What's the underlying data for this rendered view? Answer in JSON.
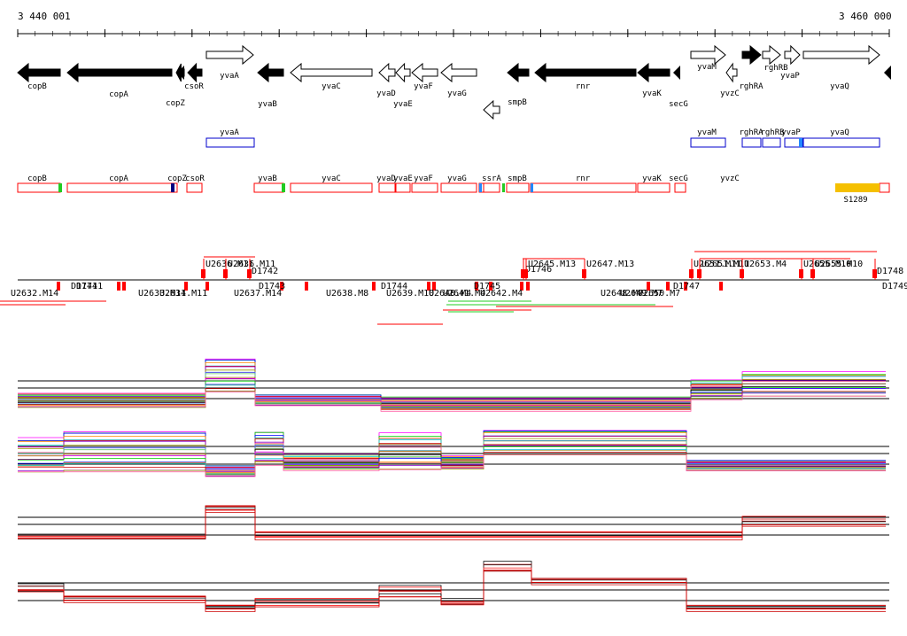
{
  "ruler": {
    "start_label": "3 440 001",
    "end_label": "3 460 000"
  },
  "genes": [
    {
      "name": "copB",
      "strand": "-",
      "fill": "black",
      "label_row": 1
    },
    {
      "name": "copA",
      "strand": "-",
      "fill": "black",
      "label_row": 1
    },
    {
      "name": "copZ",
      "strand": "-",
      "fill": "black",
      "label_row": 2
    },
    {
      "name": "csoR",
      "strand": "-",
      "fill": "black",
      "label_row": 1
    },
    {
      "name": "yvaA",
      "strand": "+",
      "fill": "white",
      "label_row": 0
    },
    {
      "name": "yvaB",
      "strand": "-",
      "fill": "black",
      "label_row": 2
    },
    {
      "name": "yvaC",
      "strand": "-",
      "fill": "white",
      "label_row": 1
    },
    {
      "name": "yvaD",
      "strand": "-",
      "fill": "white",
      "label_row": 1
    },
    {
      "name": "yvaE",
      "strand": "-",
      "fill": "white",
      "label_row": 2
    },
    {
      "name": "yvaF",
      "strand": "-",
      "fill": "white",
      "label_row": 0
    },
    {
      "name": "yvaG",
      "strand": "-",
      "fill": "white",
      "label_row": 1
    },
    {
      "name": "smpB",
      "strand": "-",
      "fill": "white",
      "label_row": 1
    },
    {
      "name": "rnr",
      "strand": "-",
      "fill": "black",
      "label_row": 1
    },
    {
      "name": "yvaK",
      "strand": "-",
      "fill": "black",
      "label_row": 1
    },
    {
      "name": "secG",
      "strand": "-",
      "fill": "black",
      "label_row": 2
    },
    {
      "name": "yvaM",
      "strand": "+",
      "fill": "white",
      "label_row": 0
    },
    {
      "name": "yvzC",
      "strand": "-",
      "fill": "white",
      "label_row": 1
    },
    {
      "name": "rghRA",
      "strand": "+",
      "fill": "black",
      "label_row": 1
    },
    {
      "name": "rghRB",
      "strand": "+",
      "fill": "white",
      "label_row": 0
    },
    {
      "name": "yvaP",
      "strand": "+",
      "fill": "white",
      "label_row": 0
    },
    {
      "name": "yvaQ",
      "strand": "+",
      "fill": "white",
      "label_row": 1
    }
  ],
  "transcripts_blue": [
    "yvaA",
    "yvaM",
    "rghRA",
    "rghRB",
    "yvaP",
    "yvaQ"
  ],
  "transcripts_red": [
    "copB",
    "copA",
    "copZ",
    "csoR",
    "yvaB",
    "yvaC",
    "yvaD",
    "yvaE",
    "yvaF",
    "yvaG",
    "ssrA",
    "smpB",
    "rnr",
    "yvaK",
    "secG",
    "yvzC"
  ],
  "feature_gold": "S1289",
  "segments_above": [
    "U2636.M11",
    "U2636.M11",
    "D1742",
    "D1746",
    "U2645.M13",
    "U2647.M13",
    "U2651.M11",
    "U2651.M11",
    "U2653.M4",
    "U2655.M10",
    "U2655.M10",
    "D1748"
  ],
  "segments_below": [
    "U2632.M14",
    "D1741",
    "D1741",
    "U2633.M11",
    "U2634.M11",
    "U2637.M14",
    "D1743",
    "U2638.M8",
    "D1744",
    "U2639.M10",
    "U2640.M4",
    "U2641.M4",
    "D1745",
    "U2642.M4",
    "U2648.M7",
    "U2649.M7",
    "U2650.M7",
    "D1747",
    "D1749"
  ],
  "colors": {
    "arrow_black": "#000000",
    "box_red": "#ff0000",
    "box_blue": "#0000cc",
    "gold": "#f5c000",
    "green": "#22cc22",
    "trace_red": "#ff0000"
  }
}
